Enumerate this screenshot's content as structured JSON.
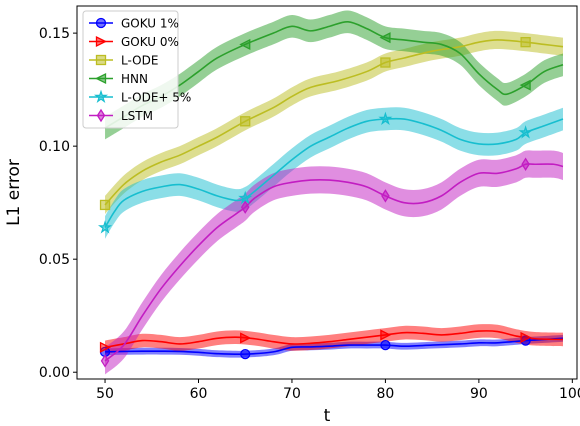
{
  "chart_data": {
    "type": "line",
    "xlabel": "t",
    "ylabel": "L1 error",
    "xlim": [
      47,
      100.5
    ],
    "ylim": [
      -0.003,
      0.162
    ],
    "xticks": [
      50,
      60,
      70,
      80,
      90,
      100
    ],
    "yticks": [
      0.0,
      0.05,
      0.1,
      0.15
    ],
    "ytick_labels": [
      "0.00",
      "0.05",
      "0.10",
      "0.15"
    ],
    "grid": false,
    "legend_position": "top-left",
    "series": [
      {
        "name": "GOKU 1%",
        "color": "#0000ff",
        "marker": "circle",
        "x": [
          50,
          52,
          54,
          56,
          58,
          60,
          62,
          65,
          68,
          70,
          72,
          74,
          76,
          78,
          80,
          82,
          85,
          88,
          90,
          92,
          95,
          97,
          99
        ],
        "y": [
          0.009,
          0.0092,
          0.0093,
          0.0093,
          0.0092,
          0.0088,
          0.0082,
          0.008,
          0.009,
          0.011,
          0.0112,
          0.0115,
          0.012,
          0.012,
          0.012,
          0.0115,
          0.012,
          0.0125,
          0.013,
          0.013,
          0.014,
          0.0145,
          0.015
        ],
        "band": 0.0015,
        "marker_x": [
          50,
          65,
          80,
          95
        ]
      },
      {
        "name": "GOKU 0%",
        "color": "#ff0000",
        "marker": "triangle-right",
        "x": [
          50,
          52,
          54,
          56,
          58,
          60,
          62,
          64,
          66,
          68,
          70,
          72,
          74,
          76,
          78,
          80,
          82,
          84,
          86,
          88,
          90,
          92,
          94,
          96,
          99
        ],
        "y": [
          0.011,
          0.0125,
          0.014,
          0.0135,
          0.0125,
          0.0135,
          0.015,
          0.0155,
          0.0148,
          0.0135,
          0.0125,
          0.0128,
          0.0135,
          0.0145,
          0.0155,
          0.0165,
          0.0175,
          0.0172,
          0.0165,
          0.0172,
          0.0182,
          0.018,
          0.016,
          0.0148,
          0.0145
        ],
        "band": 0.003,
        "marker_x": [
          50,
          65,
          80,
          95
        ]
      },
      {
        "name": "L-ODE",
        "color": "#bcbd22",
        "marker": "square",
        "x": [
          50,
          52,
          54,
          56,
          58,
          60,
          62,
          65,
          68,
          70,
          72,
          75,
          78,
          80,
          82,
          85,
          88,
          90,
          92,
          95,
          97,
          99
        ],
        "y": [
          0.074,
          0.083,
          0.089,
          0.093,
          0.096,
          0.1,
          0.104,
          0.111,
          0.117,
          0.122,
          0.126,
          0.129,
          0.133,
          0.137,
          0.139,
          0.142,
          0.144,
          0.146,
          0.147,
          0.146,
          0.145,
          0.144
        ],
        "band": 0.004,
        "marker_x": [
          50,
          65,
          80,
          95
        ]
      },
      {
        "name": "HNN",
        "color": "#2ca02c",
        "marker": "triangle-left",
        "x": [
          50,
          52,
          54,
          56,
          58,
          60,
          62,
          65,
          68,
          70,
          72,
          74,
          76,
          78,
          80,
          82,
          84,
          86,
          88,
          90,
          92,
          93,
          95,
          97,
          99
        ],
        "y": [
          0.108,
          0.113,
          0.118,
          0.122,
          0.127,
          0.133,
          0.139,
          0.145,
          0.15,
          0.153,
          0.151,
          0.153,
          0.155,
          0.152,
          0.148,
          0.147,
          0.146,
          0.145,
          0.141,
          0.132,
          0.125,
          0.123,
          0.127,
          0.133,
          0.136
        ],
        "band": 0.005,
        "marker_x": [
          65,
          80,
          95
        ]
      },
      {
        "name": "L-ODE+ 5%",
        "color": "#17becf",
        "marker": "star",
        "x": [
          50,
          51,
          52,
          54,
          56,
          58,
          60,
          62,
          64,
          65,
          66,
          68,
          70,
          72,
          74,
          76,
          78,
          80,
          82,
          84,
          86,
          88,
          90,
          92,
          94,
          95,
          97,
          99
        ],
        "y": [
          0.064,
          0.071,
          0.076,
          0.08,
          0.082,
          0.083,
          0.081,
          0.078,
          0.076,
          0.077,
          0.08,
          0.087,
          0.094,
          0.1,
          0.104,
          0.108,
          0.111,
          0.112,
          0.112,
          0.11,
          0.107,
          0.103,
          0.101,
          0.101,
          0.103,
          0.106,
          0.109,
          0.112
        ],
        "band": 0.005,
        "marker_x": [
          50,
          65,
          80,
          95
        ]
      },
      {
        "name": "LSTM",
        "color": "#c21dc2",
        "marker": "diamond",
        "x": [
          50,
          52,
          54,
          56,
          58,
          60,
          62,
          64,
          65,
          66,
          68,
          70,
          72,
          74,
          76,
          78,
          80,
          82,
          84,
          86,
          88,
          90,
          92,
          94,
          95,
          96,
          98,
          99
        ],
        "y": [
          0.005,
          0.012,
          0.025,
          0.037,
          0.047,
          0.056,
          0.064,
          0.07,
          0.073,
          0.077,
          0.082,
          0.084,
          0.085,
          0.085,
          0.084,
          0.082,
          0.078,
          0.075,
          0.075,
          0.078,
          0.084,
          0.088,
          0.088,
          0.09,
          0.092,
          0.092,
          0.092,
          0.091
        ],
        "band": 0.006,
        "marker_x": [
          50,
          65,
          80,
          95
        ]
      }
    ]
  }
}
